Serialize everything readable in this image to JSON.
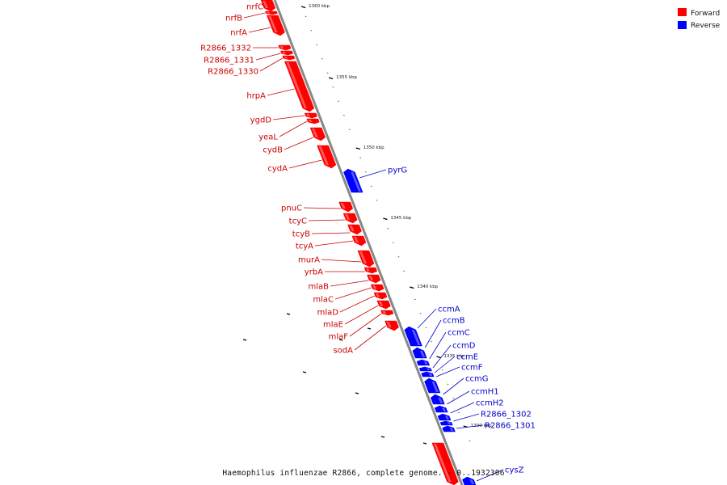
{
  "footer": "Haemophilus influenzae R2866, complete genome. - 0..1932306",
  "legend": [
    {
      "label": "Forward",
      "color": "#ff0000"
    },
    {
      "label": "Reverse",
      "color": "#0000ff"
    }
  ],
  "colors": {
    "forward": "#ff0000",
    "reverse": "#0000ff",
    "forward_label": "#cc0000",
    "reverse_label": "#0000cc",
    "backbone": "#888888"
  },
  "ticks": [
    "1360 kbp",
    "1355 kbp",
    "1350 kbp",
    "1345 kbp",
    "1340 kbp",
    "1335 kbp",
    "1330 kbp"
  ],
  "genes_forward": [
    {
      "name": "nrfC"
    },
    {
      "name": "nrfB"
    },
    {
      "name": "nrfA"
    },
    {
      "name": "R2866_1332"
    },
    {
      "name": "R2866_1331"
    },
    {
      "name": "R2866_1330"
    },
    {
      "name": "hrpA"
    },
    {
      "name": "ygdD"
    },
    {
      "name": "yeaL"
    },
    {
      "name": "cydB"
    },
    {
      "name": "cydA"
    },
    {
      "name": "pnuC"
    },
    {
      "name": "tcyC"
    },
    {
      "name": "tcyB"
    },
    {
      "name": "tcyA"
    },
    {
      "name": "murA"
    },
    {
      "name": "yrbA"
    },
    {
      "name": "mlaB"
    },
    {
      "name": "mlaC"
    },
    {
      "name": "mlaD"
    },
    {
      "name": "mlaE"
    },
    {
      "name": "mlaF"
    },
    {
      "name": "sodA"
    }
  ],
  "genes_reverse": [
    {
      "name": "pyrG"
    },
    {
      "name": "ccmA"
    },
    {
      "name": "ccmB"
    },
    {
      "name": "ccmC"
    },
    {
      "name": "ccmD"
    },
    {
      "name": "ccmE"
    },
    {
      "name": "ccmF"
    },
    {
      "name": "ccmG"
    },
    {
      "name": "ccmH1"
    },
    {
      "name": "ccmH2"
    },
    {
      "name": "R2866_1302"
    },
    {
      "name": "R2866_1301"
    },
    {
      "name": "cysZ"
    }
  ]
}
